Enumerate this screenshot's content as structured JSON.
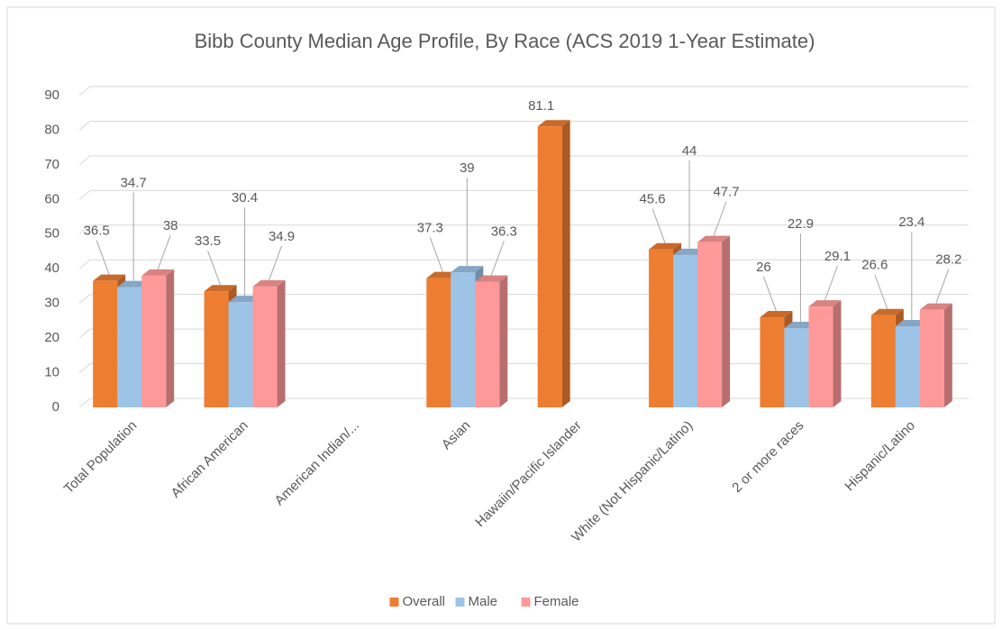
{
  "chart_data": {
    "type": "bar3d",
    "title": "Bibb County Median Age Profile, By Race (ACS 2019 1-Year Estimate)",
    "categories": [
      "Total Population",
      "African American",
      "American Indian/...",
      "Asian",
      "Hawaiin/Pacific Islander",
      "White (Not Hispanic/Latino)",
      "2 or more races",
      "Hispanic/Latino"
    ],
    "series": [
      {
        "name": "Overall",
        "color": "#ed7d31",
        "values": [
          36.5,
          33.5,
          null,
          37.3,
          81.1,
          45.6,
          26,
          26.6
        ]
      },
      {
        "name": "Male",
        "color": "#9dc3e6",
        "values": [
          34.7,
          30.4,
          null,
          39,
          null,
          44,
          22.9,
          23.4
        ]
      },
      {
        "name": "Female",
        "color": "#ff9999",
        "values": [
          38,
          34.9,
          null,
          36.3,
          null,
          47.7,
          29.1,
          28.2
        ]
      }
    ],
    "ylim": [
      0,
      90
    ],
    "yticks": [
      0,
      10,
      20,
      30,
      40,
      50,
      60,
      70,
      80,
      90
    ],
    "grid": true,
    "legend": "bottom"
  }
}
